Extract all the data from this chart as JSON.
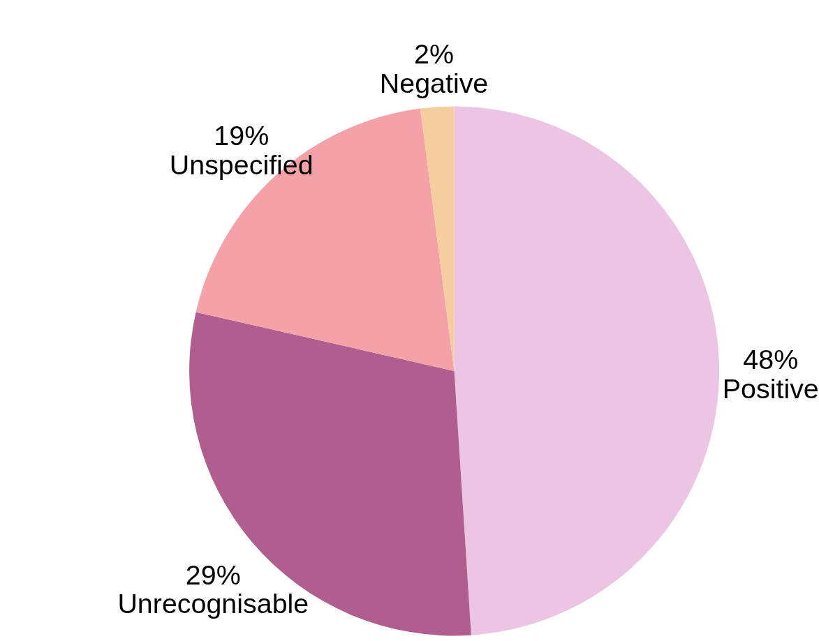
{
  "chart_data": {
    "type": "pie",
    "categories": [
      "Positive",
      "Unrecognisable",
      "Unspecified",
      "Negative"
    ],
    "values": [
      48,
      29,
      19,
      2
    ],
    "value_labels": [
      "48%",
      "29%",
      "19%",
      "2%"
    ],
    "colors": [
      "#ecc5e4",
      "#b05d8f",
      "#f4a1a7",
      "#f6cd9e"
    ],
    "legend": false
  }
}
